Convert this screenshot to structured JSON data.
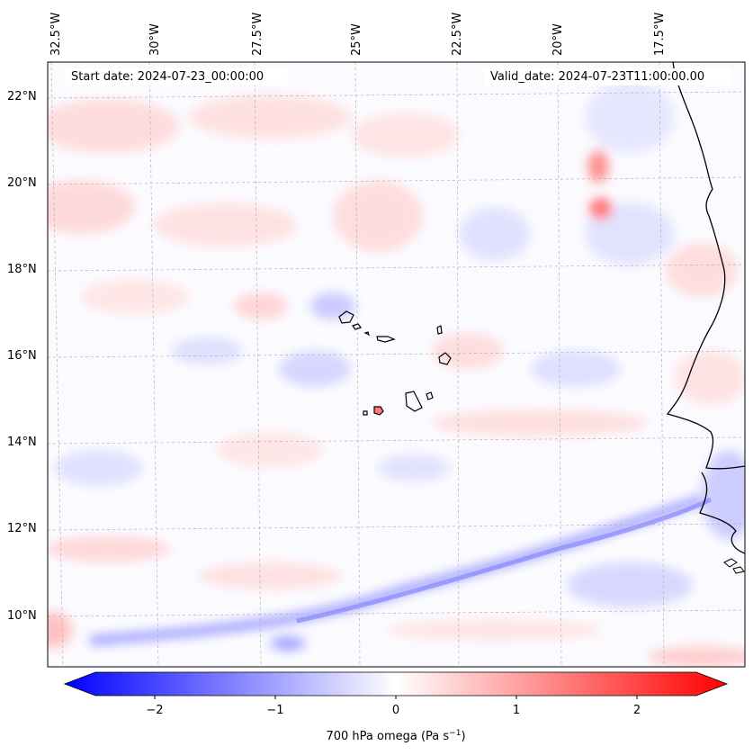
{
  "header": {
    "start_date": "Start date: 2024-07-23_00:00:00",
    "valid_date": "Valid_date: 2024-07-23T11:00:00.00"
  },
  "map": {
    "lon_ticks": [
      "32.5°W",
      "30°W",
      "27.5°W",
      "25°W",
      "22.5°W",
      "20°W",
      "17.5°W"
    ],
    "lat_ticks": [
      "22°N",
      "20°N",
      "18°N",
      "16°N",
      "14°N",
      "12°N",
      "10°N"
    ],
    "colors": {
      "positive": "#ff0000",
      "negative": "#0000ff",
      "neutral": "#ffffff",
      "gridline": "#b0b0b0",
      "coast": "#000000"
    }
  },
  "colorbar": {
    "ticks": [
      "−2",
      "−1",
      "0",
      "1",
      "2"
    ],
    "label_main": "700 hPa omega (Pa s",
    "label_exp": "−1",
    "label_end": ")"
  }
}
